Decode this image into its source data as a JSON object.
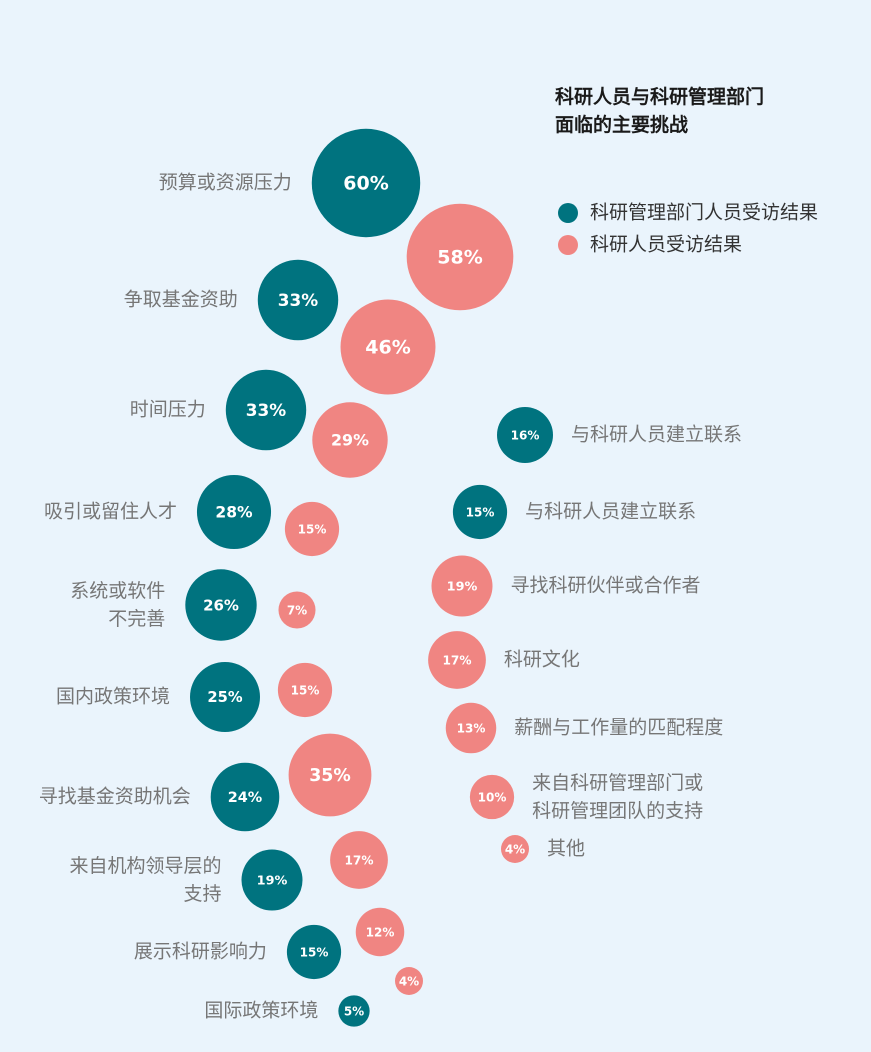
{
  "chart_data": [
    {
      "type": "bubble",
      "title": "科研人员与科研管理部门\n面临的主要挑战",
      "categories": [
        "预算或资源压力",
        "争取基金资助",
        "时间压力",
        "吸引或留住人才",
        "系统或软件\n不完善",
        "国内政策环境",
        "寻找基金资助机会",
        "来自机构领导层的\n支持",
        "展示科研影响力",
        "国际政策环境"
      ],
      "series": [
        {
          "name": "科研管理部门人员受访结果",
          "color": "#00737f",
          "values": [
            60,
            33,
            33,
            28,
            26,
            25,
            24,
            19,
            15,
            5
          ],
          "value_labels": [
            "60%",
            "33%",
            "33%",
            "28%",
            "26%",
            "25%",
            "24%",
            "19%",
            "15%",
            "5%"
          ]
        },
        {
          "name": "科研人员受访结果",
          "color": "#f08582",
          "values": [
            58,
            46,
            29,
            15,
            7,
            15,
            35,
            17,
            12,
            4
          ],
          "value_labels": [
            "58%",
            "46%",
            "29%",
            "15%",
            "7%",
            "15%",
            "35%",
            "17%",
            "12%",
            "4%"
          ]
        }
      ]
    },
    {
      "type": "bubble",
      "categories": [
        "与科研人员建立联系",
        "与科研人员建立联系",
        "寻找科研伙伴或合作者",
        "科研文化",
        "薪酬与工作量的匹配程度",
        "来自科研管理部门或\n科研管理团队的支持",
        "其他"
      ],
      "series": [
        {
          "color": "#00737f",
          "values": [
            16,
            15,
            null,
            null,
            null,
            null,
            null
          ],
          "value_labels": [
            "16%",
            "15%",
            null,
            null,
            null,
            null,
            null
          ]
        },
        {
          "color": "#f08582",
          "values": [
            null,
            null,
            19,
            17,
            13,
            10,
            4
          ],
          "value_labels": [
            null,
            null,
            "19%",
            "17%",
            "13%",
            "10%",
            "4%"
          ]
        }
      ]
    }
  ]
}
